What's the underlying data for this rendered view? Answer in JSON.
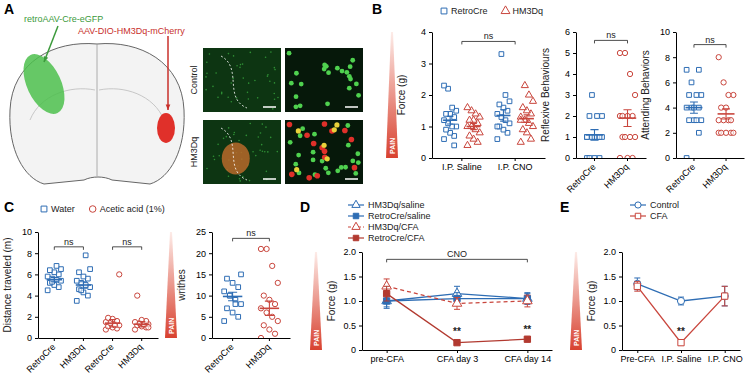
{
  "panel_a": {
    "panel": "A",
    "injections": [
      "retroAAV-Cre-eGFP",
      "AAV-DIO-HM3Dq-mCherry"
    ],
    "image_rows": [
      "Control",
      "HM3Dq"
    ]
  },
  "chart_data": [
    {
      "panel": "B",
      "type": "bar",
      "y_label": "Force (g)",
      "side_label": "PAIN",
      "legend": "top",
      "categories": [
        "I.P. Saline",
        "I.P. CNO"
      ],
      "ylim": [
        0,
        4
      ],
      "yticks": [
        0,
        1,
        2,
        3,
        4
      ],
      "series": [
        {
          "name": "RetroCre",
          "color": "#2e6db4",
          "marker": "square-open",
          "values": [
            1.2,
            1.35
          ],
          "errors": [
            0.12,
            0.18
          ],
          "points": [
            [
              0.6,
              0.7,
              0.8,
              0.9,
              1.0,
              1.0,
              1.1,
              1.2,
              1.3,
              1.4,
              1.4,
              1.5,
              1.6,
              2.2,
              2.3,
              0.4
            ],
            [
              0.6,
              0.8,
              0.9,
              1.0,
              1.1,
              1.2,
              1.3,
              1.4,
              1.5,
              1.6,
              1.7,
              1.8,
              2.0,
              3.3,
              1.0
            ]
          ]
        },
        {
          "name": "HM3Dq",
          "color": "#c9463d",
          "marker": "triangle-open",
          "values": [
            1.0,
            1.25
          ],
          "errors": [
            0.1,
            0.12
          ],
          "points": [
            [
              0.4,
              0.5,
              0.6,
              0.7,
              0.8,
              0.9,
              1.0,
              1.0,
              1.1,
              1.2,
              1.2,
              1.3,
              1.4,
              1.5,
              1.6
            ],
            [
              0.5,
              0.6,
              0.8,
              0.9,
              1.0,
              1.1,
              1.2,
              1.3,
              1.4,
              1.5,
              1.6,
              1.8,
              2.0,
              2.3,
              1.2
            ]
          ]
        }
      ],
      "annotations": [
        {
          "text": "ns",
          "x": [
            0,
            1
          ],
          "y": 3.7
        }
      ]
    },
    {
      "type": "bar",
      "y_label": "Reflexive Behaviours",
      "categories": [
        "RetroCre",
        "HM3Dq"
      ],
      "ylim": [
        0,
        6
      ],
      "yticks": [
        0,
        1,
        2,
        3,
        4,
        5,
        6
      ],
      "series": [
        {
          "name": "RetroCre",
          "color": "#2e6db4",
          "marker": "square-open",
          "values": [
            1.1,
            null
          ],
          "errors": [
            0.25,
            null
          ],
          "points": [
            [
              0,
              0,
              0,
              0,
              1,
              1,
              1,
              1,
              1,
              1,
              2,
              2,
              2,
              3,
              1
            ],
            null
          ]
        },
        {
          "name": "HM3Dq",
          "color": "#c9463d",
          "marker": "circle-open",
          "values": [
            null,
            1.9
          ],
          "errors": [
            null,
            0.4
          ],
          "points": [
            null,
            [
              0,
              0,
              0,
              1,
              1,
              1,
              1,
              2,
              2,
              2,
              2,
              3,
              4,
              5,
              5
            ]
          ]
        }
      ],
      "annotations": [
        {
          "text": "ns",
          "x": [
            0,
            1
          ],
          "y": 5.6
        }
      ]
    },
    {
      "type": "bar",
      "y_label": "Attending Behaviors",
      "categories": [
        "RetroCre",
        "HM3Dq"
      ],
      "ylim": [
        0,
        10
      ],
      "yticks": [
        0,
        2,
        4,
        6,
        8,
        10
      ],
      "series": [
        {
          "name": "RetroCre",
          "color": "#2e6db4",
          "marker": "square-open",
          "values": [
            4.0,
            null
          ],
          "errors": [
            0.45,
            null
          ],
          "points": [
            [
              0,
              2,
              3,
              3,
              3,
              3,
              4,
              4,
              4,
              4,
              5,
              5,
              5,
              6,
              7,
              7
            ],
            null
          ]
        },
        {
          "name": "HM3Dq",
          "color": "#c9463d",
          "marker": "circle-open",
          "values": [
            null,
            3.5
          ],
          "errors": [
            null,
            0.4
          ],
          "points": [
            null,
            [
              2,
              2,
              2,
              2,
              2,
              3,
              3,
              3,
              3,
              4,
              4,
              5,
              5,
              6,
              8
            ]
          ]
        }
      ],
      "annotations": [
        {
          "text": "ns",
          "x": [
            0,
            1
          ],
          "y": 9
        }
      ]
    },
    {
      "panel": "C",
      "type": "bar",
      "y_label": "Distance traveled (m)",
      "legend": "top",
      "categories": [
        "RetroCre",
        "HM3Dq",
        "RetroCre",
        "HM3Dq"
      ],
      "ylim": [
        0,
        10
      ],
      "yticks": [
        0,
        2,
        4,
        6,
        8,
        10
      ],
      "series": [
        {
          "name": "Water",
          "color": "#2e6db4",
          "marker": "square-open",
          "values": [
            5.5,
            5.0,
            null,
            null
          ],
          "errors": [
            0.2,
            0.3,
            null,
            null
          ],
          "points": [
            [
              4.5,
              4.8,
              5.0,
              5.2,
              5.4,
              5.5,
              5.6,
              5.8,
              6.0,
              6.2,
              6.4,
              6.5,
              6.8,
              5.3
            ],
            [
              3.5,
              4.0,
              4.3,
              4.6,
              4.8,
              5.0,
              5.2,
              5.4,
              5.6,
              5.8,
              6.2,
              6.5,
              7.8,
              4.5
            ],
            null,
            null
          ]
        },
        {
          "name": "Acetic acid (1%)",
          "color": "#c9463d",
          "marker": "circle-open",
          "values": [
            null,
            null,
            1.4,
            1.3
          ],
          "errors": [
            null,
            null,
            0.35,
            0.25
          ],
          "points": [
            null,
            null,
            [
              0.8,
              0.9,
              1.0,
              1.1,
              1.2,
              1.3,
              1.4,
              1.5,
              1.6,
              1.8,
              1.9,
              6.0,
              1.2
            ],
            [
              0.8,
              1.0,
              1.1,
              1.2,
              1.3,
              1.3,
              1.4,
              1.5,
              1.6,
              1.7,
              4.0,
              1.0
            ]
          ]
        }
      ],
      "annotations": [
        {
          "text": "ns",
          "x": [
            0,
            1
          ],
          "y": 8.6
        },
        {
          "text": "ns",
          "x": [
            2,
            3
          ],
          "y": 8.6
        }
      ]
    },
    {
      "type": "bar",
      "y_label": "writhes",
      "side_label": "PAIN",
      "categories": [
        "RetroCre",
        "HM3Dq"
      ],
      "ylim": [
        0,
        25
      ],
      "yticks": [
        0,
        5,
        10,
        15,
        20,
        25
      ],
      "series": [
        {
          "name": "RetroCre",
          "color": "#2e6db4",
          "marker": "square-open",
          "values": [
            9.8,
            null
          ],
          "errors": [
            1.0,
            null
          ],
          "points": [
            [
              4,
              5,
              6,
              7,
              8,
              9,
              10,
              11,
              12,
              13,
              14,
              15,
              8,
              10
            ],
            null
          ]
        },
        {
          "name": "HM3Dq",
          "color": "#c9463d",
          "marker": "circle-open",
          "values": [
            null,
            7.0
          ],
          "errors": [
            null,
            1.7
          ],
          "points": [
            null,
            [
              0,
              1,
              2,
              3,
              4,
              5,
              6,
              7,
              8,
              9,
              10,
              13,
              17,
              21,
              21
            ]
          ]
        }
      ],
      "annotations": [
        {
          "text": "ns",
          "x": [
            0,
            1
          ],
          "y": 23.5
        }
      ]
    },
    {
      "panel": "D",
      "type": "line",
      "y_label": "Force (g)",
      "side_label": "PAIN",
      "legend": "top",
      "categories": [
        "pre-CFA",
        "CFA day 3",
        "CFA day 14"
      ],
      "ylim": [
        0,
        2
      ],
      "yticks": [
        0,
        0.5,
        {
          "value": 1,
          "label": "1.0"
        },
        1.5,
        {
          "value": 2,
          "label": "2.0"
        }
      ],
      "series": [
        {
          "name": "HM3Dq/saline",
          "color": "#2e6db4",
          "marker": "triangle-open",
          "line_style": "solid",
          "values": [
            1.0,
            1.15,
            1.05
          ],
          "errors": [
            0.12,
            0.15,
            0.12
          ]
        },
        {
          "name": "RetroCre/saline",
          "color": "#2e6db4",
          "marker": "square",
          "line_style": "solid",
          "values": [
            1.0,
            1.05,
            1.05
          ],
          "errors": [
            0.15,
            0.12,
            0.1
          ]
        },
        {
          "name": "HM3Dq/CFA",
          "color": "#c9463d",
          "marker": "triangle-open",
          "line_style": "dashed",
          "values": [
            1.3,
            0.95,
            1.0
          ],
          "errors": [
            0.15,
            0.12,
            0.12
          ]
        },
        {
          "name": "RetroCre/CFA",
          "color": "#b23a30",
          "marker": "square",
          "line_style": "solid",
          "values": [
            1.15,
            0.15,
            0.22
          ],
          "errors": [
            0.15,
            0.04,
            0.04
          ]
        }
      ],
      "annotations": [
        {
          "text": "CNO",
          "x": [
            0,
            2
          ],
          "y": 1.85
        },
        {
          "text": "**",
          "x": [
            1
          ],
          "y": 0.3
        },
        {
          "text": "**",
          "x": [
            2
          ],
          "y": 0.35
        }
      ]
    },
    {
      "panel": "E",
      "type": "line",
      "y_label": "Force (g)",
      "side_label": "PAIN",
      "legend": "top",
      "categories": [
        "Pre-CFA",
        "I.P. Saline",
        "I.P. CNO"
      ],
      "ylim": [
        0,
        2
      ],
      "yticks": [
        0,
        0.5,
        {
          "value": 1,
          "label": "1.0"
        },
        1.5,
        {
          "value": 2,
          "label": "2.0"
        }
      ],
      "series": [
        {
          "name": "Control",
          "color": "#2e6db4",
          "marker": "circle-open",
          "line_style": "solid",
          "values": [
            1.35,
            1.0,
            1.1
          ],
          "errors": [
            0.12,
            0.08,
            0.2
          ]
        },
        {
          "name": "CFA",
          "color": "#c9463d",
          "marker": "square-open",
          "line_style": "solid",
          "values": [
            1.3,
            0.15,
            1.1
          ],
          "errors": [
            0.1,
            0.05,
            0.2
          ]
        }
      ],
      "annotations": [
        {
          "text": "**",
          "x": [
            1
          ],
          "y": 0.3
        }
      ]
    }
  ]
}
